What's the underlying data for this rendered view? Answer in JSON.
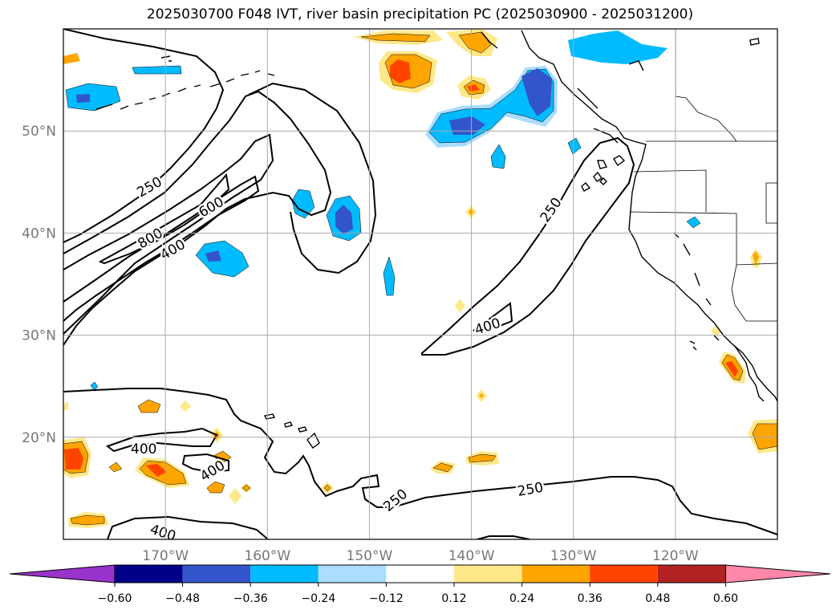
{
  "title": "2025030700 F048 IVT, river basin precipitation PC (2025030900 - 2025031200)",
  "map": {
    "lon_range": [
      -180,
      -110
    ],
    "lat_range": [
      10,
      60
    ],
    "lon_ticks": [
      {
        "value": -170,
        "label": "170°W"
      },
      {
        "value": -160,
        "label": "160°W"
      },
      {
        "value": -150,
        "label": "150°W"
      },
      {
        "value": -140,
        "label": "140°W"
      },
      {
        "value": -130,
        "label": "130°W"
      },
      {
        "value": -120,
        "label": "120°W"
      }
    ],
    "lat_ticks": [
      {
        "value": 20,
        "label": "20°N"
      },
      {
        "value": 30,
        "label": "30°N"
      },
      {
        "value": 40,
        "label": "40°N"
      },
      {
        "value": 50,
        "label": "50°N"
      }
    ],
    "grid": true,
    "contour_labels": [
      "250",
      "600",
      "800",
      "400",
      "250",
      "400",
      "400",
      "400",
      "250",
      "250",
      "400"
    ]
  },
  "colorbar": {
    "ticks": [
      "−0.60",
      "−0.48",
      "−0.36",
      "−0.24",
      "−0.12",
      "0.12",
      "0.24",
      "0.36",
      "0.48",
      "0.60"
    ],
    "colors": [
      "#9933cc",
      "#000088",
      "#3355cc",
      "#00bbff",
      "#aaddff",
      "#ffffff",
      "#ffe888",
      "#ffa500",
      "#ff4400",
      "#b22222",
      "#ff88aa"
    ]
  }
}
